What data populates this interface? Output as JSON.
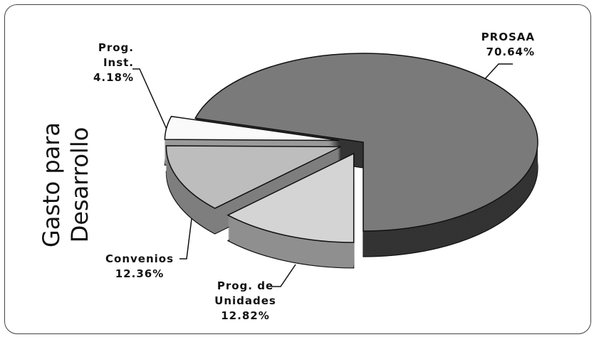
{
  "chart_data": {
    "type": "pie",
    "title": "Gasto para Desarrollo",
    "categories": [
      "PROSAA",
      "Prog. de Unidades",
      "Convenios",
      "Prog. Inst."
    ],
    "values": [
      70.64,
      12.82,
      12.36,
      4.18
    ],
    "value_labels": [
      "70.64%",
      "12.82%",
      "12.36%",
      "4.18%"
    ],
    "colors": [
      "#7a7a7a",
      "#d4d4d4",
      "#bdbdbd",
      "#fafafa"
    ],
    "side_colors": [
      "#333333",
      "#8f8f8f",
      "#7e7e7e",
      "#9a9a9a"
    ]
  }
}
